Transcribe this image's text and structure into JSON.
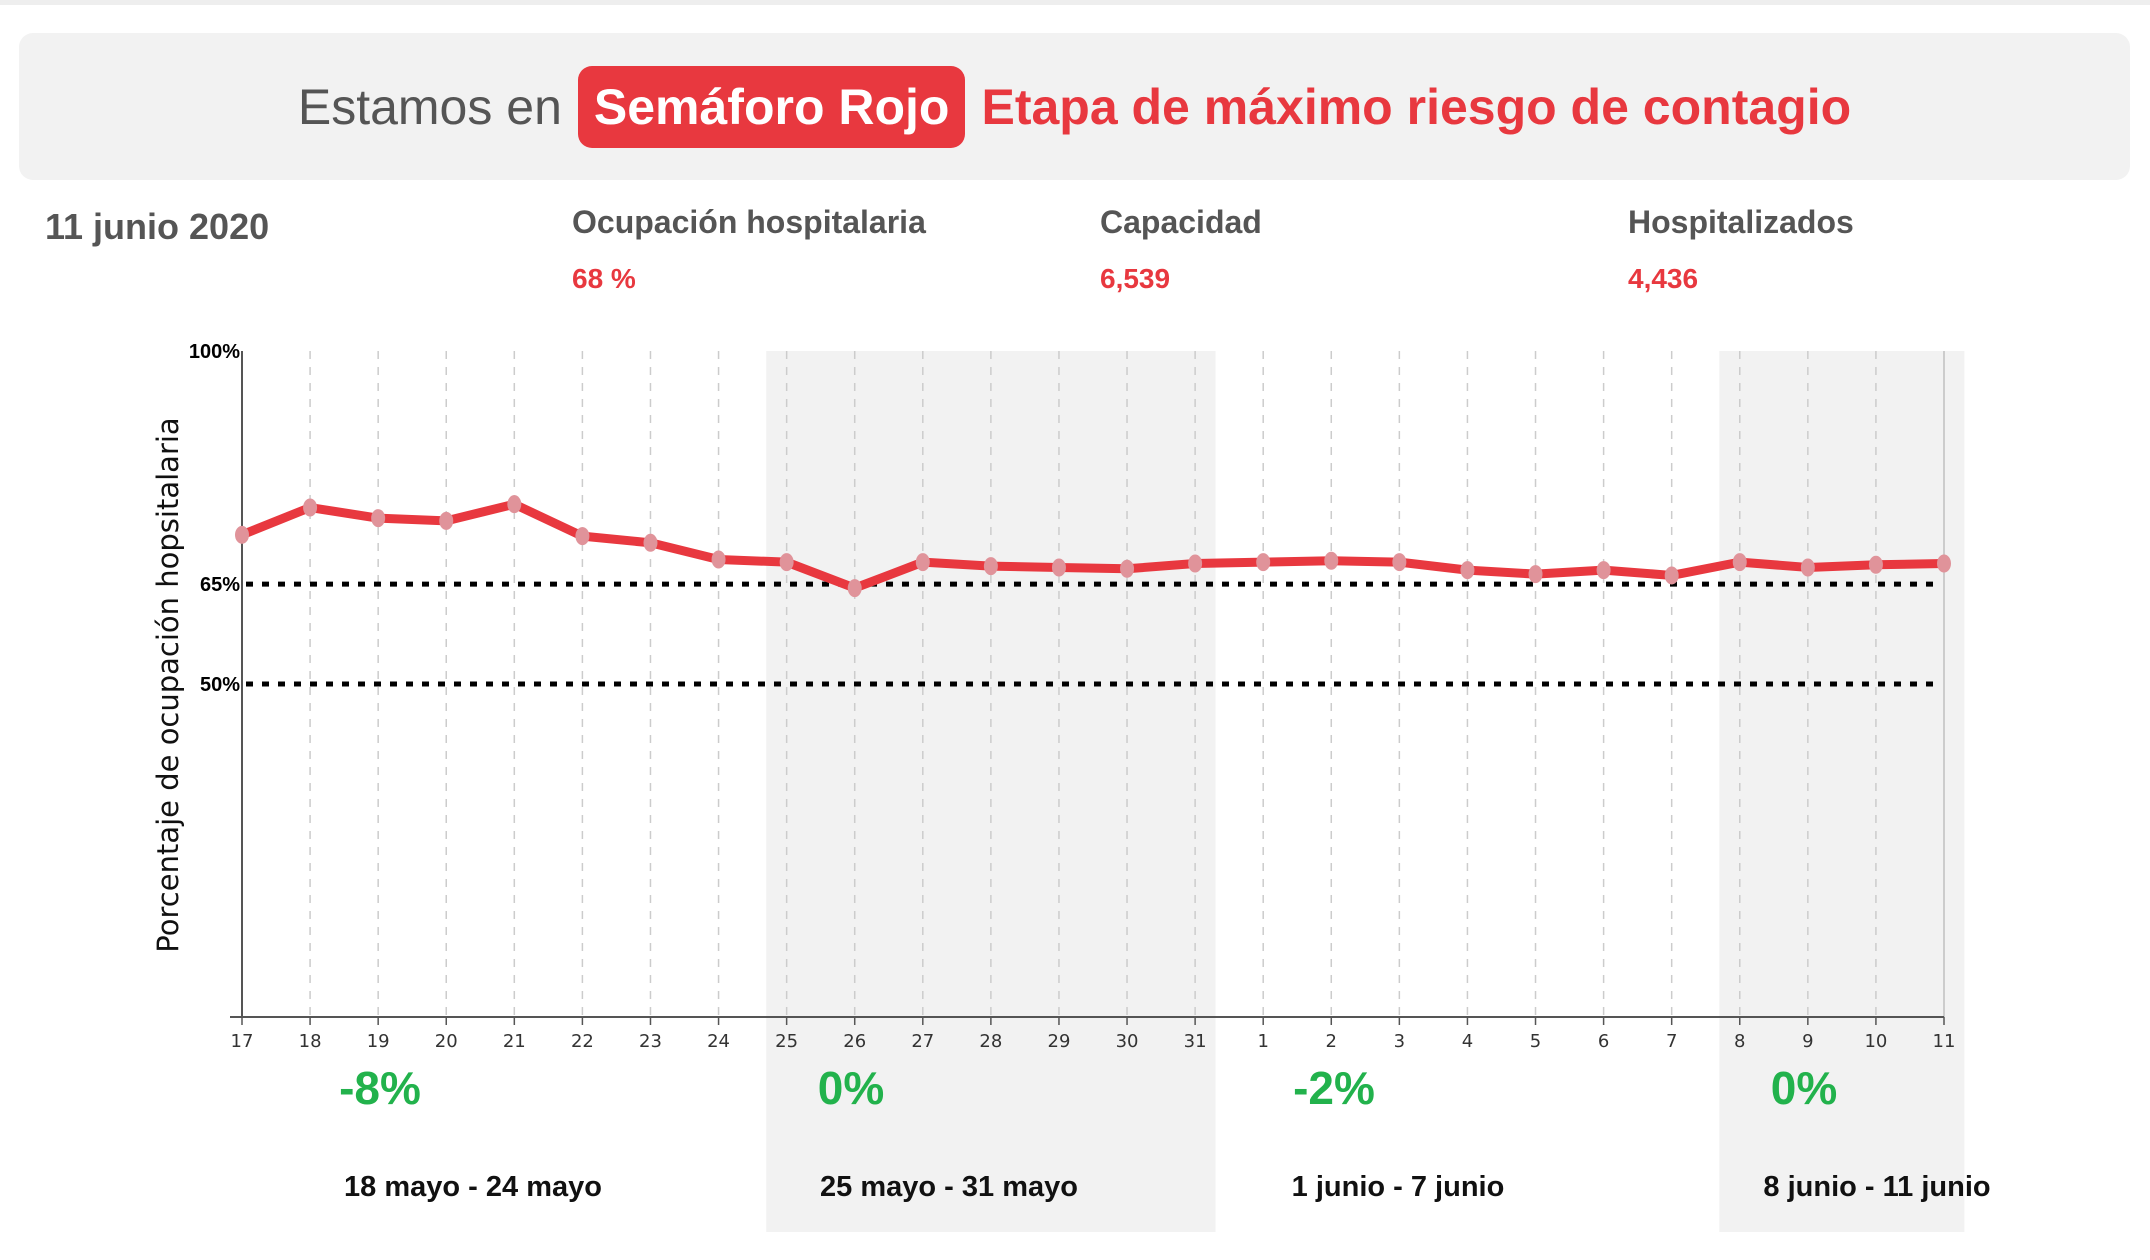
{
  "banner": {
    "prefix": "Estamos en",
    "pill": "Semáforo Rojo",
    "stage": "Etapa de máximo riesgo de contagio"
  },
  "date": "11 junio 2020",
  "stats": [
    {
      "label": "Ocupación hospitalaria",
      "value": "68 %"
    },
    {
      "label": "Capacidad",
      "value": "6,539"
    },
    {
      "label": "Hospitalizados",
      "value": "4,436"
    }
  ],
  "colors": {
    "red": "#e8383f",
    "marker": "#e0939a",
    "green": "#22b24c",
    "band": "#f2f2f2"
  },
  "chart_data": {
    "type": "line",
    "ylabel": "Porcentaje de ocupación hopsitalaria",
    "ylim": [
      0,
      100
    ],
    "y_tick_labels": [
      {
        "value": 100,
        "label": "100%"
      },
      {
        "value": 65,
        "label": "65%"
      },
      {
        "value": 50,
        "label": "50%"
      }
    ],
    "reference_lines": [
      65,
      50
    ],
    "x": [
      "17",
      "18",
      "19",
      "20",
      "21",
      "22",
      "23",
      "24",
      "25",
      "26",
      "27",
      "28",
      "29",
      "30",
      "31",
      "1",
      "2",
      "3",
      "4",
      "5",
      "6",
      "7",
      "8",
      "9",
      "10",
      "11"
    ],
    "values": [
      72.4,
      76.5,
      74.9,
      74.5,
      77.0,
      72.2,
      71.2,
      68.7,
      68.3,
      64.4,
      68.3,
      67.7,
      67.5,
      67.3,
      68.1,
      68.3,
      68.5,
      68.3,
      67.1,
      66.5,
      67.1,
      66.3,
      68.3,
      67.5,
      67.9,
      68.1
    ],
    "weeks": [
      {
        "label": "18 mayo - 24 mayo",
        "change": "-8%",
        "shaded": false
      },
      {
        "label": "25 mayo - 31 mayo",
        "change": "0%",
        "shaded": true
      },
      {
        "label": "1 junio - 7 junio",
        "change": "-2%",
        "shaded": false
      },
      {
        "label": "8 junio - 11 junio",
        "change": "0%",
        "shaded": true
      }
    ]
  }
}
